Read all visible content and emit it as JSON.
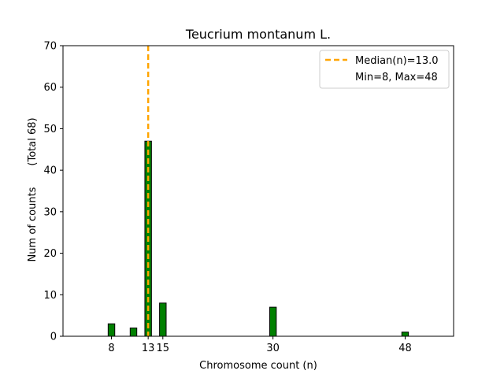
{
  "chart_data": {
    "type": "bar",
    "title": "Teucrium montanum L.",
    "xlabel": "Chromosome count (n)",
    "ylabel": "Num of counts",
    "ylabel_note": "(Total 68)",
    "xlim": [
      1.4,
      54.6
    ],
    "ylim": [
      0,
      70
    ],
    "yticks": [
      0,
      10,
      20,
      30,
      40,
      50,
      60,
      70
    ],
    "xticks": [
      8,
      13,
      15,
      30,
      48
    ],
    "xtick_labels": [
      "8",
      "13",
      "15",
      "30",
      "48"
    ],
    "bar_width": 0.9,
    "bars": [
      {
        "x": 8,
        "value": 3
      },
      {
        "x": 11,
        "value": 2
      },
      {
        "x": 13,
        "value": 47
      },
      {
        "x": 15,
        "value": 8
      },
      {
        "x": 30,
        "value": 7
      },
      {
        "x": 48,
        "value": 1
      }
    ],
    "bar_color": "#008000",
    "bar_edge_color": "#000000",
    "median": {
      "x": 13.0,
      "color": "#FFA500"
    },
    "legend": {
      "placement": "top-right",
      "entries": [
        "Median(n)=13.0",
        "Min=8, Max=48"
      ]
    }
  }
}
